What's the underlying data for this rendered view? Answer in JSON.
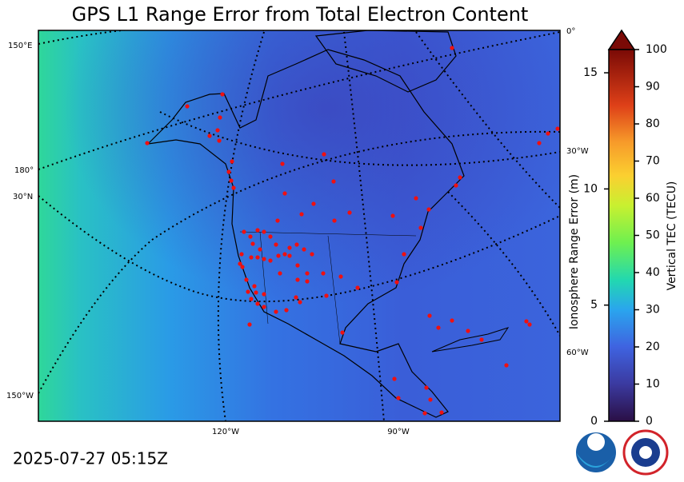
{
  "title": "GPS L1 Range Error from Total Electron Content",
  "timestamp": "2025-07-27 05:15Z",
  "map_labels": [
    "150°E",
    "180°",
    "30°N",
    "150°W",
    "120°W",
    "90°W",
    "0°",
    "30°W",
    "60°W"
  ],
  "colorbar": {
    "left_label": "Ionosphere Range Error (m)",
    "left_lim": [
      0,
      16
    ],
    "left_ticks": [
      0,
      5,
      10,
      15
    ],
    "right_label": "Vertical TEC (TECU)",
    "right_lim": [
      0,
      100
    ],
    "right_ticks": [
      0,
      10,
      20,
      30,
      40,
      50,
      60,
      70,
      80,
      90,
      100
    ]
  }
}
